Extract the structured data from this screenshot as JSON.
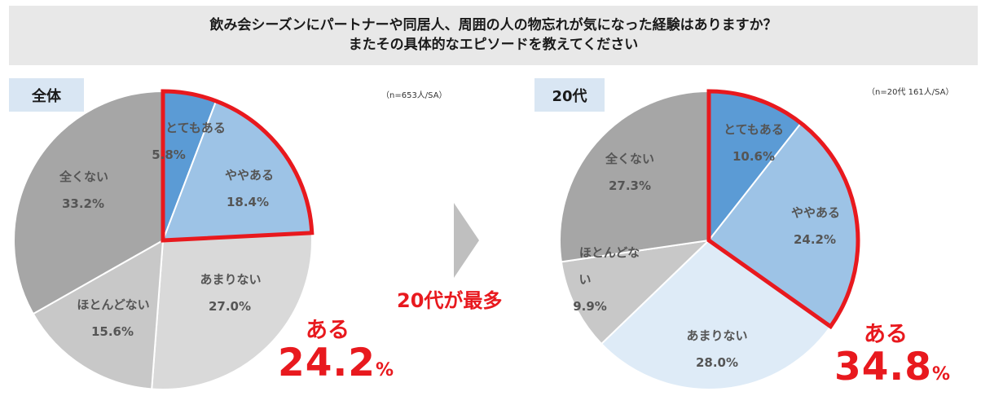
{
  "title": {
    "line1": "飲み会シーズンにパートナーや同居人、周囲の人の物忘れが気になった経験はありますか？",
    "line2": "またその具体的なエピソードを教えてください"
  },
  "arrow_label": "20代が最多",
  "colors": {
    "very": "#5b9bd5",
    "somewhat": "#9dc3e6",
    "not_much_left": "#d9d9d9",
    "not_much_right": "#deebf7",
    "rarely": "#c8c8c8",
    "not_at_all": "#a6a6a6",
    "highlight": "#e8191e"
  },
  "chart_data": [
    {
      "type": "pie",
      "panel_label": "全体",
      "sample_note": "（n=653人/SA）",
      "slices": [
        {
          "label": "とてもある",
          "value": 5.8
        },
        {
          "label": "ややある",
          "value": 18.4
        },
        {
          "label": "あまりない",
          "value": 27.0
        },
        {
          "label": "ほとんどない",
          "value": 15.6
        },
        {
          "label": "全くない",
          "value": 33.2
        }
      ],
      "highlight": {
        "word": "ある",
        "value": "24.2",
        "unit": "%"
      }
    },
    {
      "type": "pie",
      "panel_label": "20代",
      "sample_note": "（n=20代 161人/SA）",
      "slices": [
        {
          "label": "とてもある",
          "value": 10.6
        },
        {
          "label": "ややある",
          "value": 24.2
        },
        {
          "label": "あまりない",
          "value": 28.0
        },
        {
          "label": "ほとんどない",
          "value": 9.9
        },
        {
          "label": "全くない",
          "value": 27.3
        }
      ],
      "highlight": {
        "word": "ある",
        "value": "34.8",
        "unit": "%"
      }
    }
  ]
}
